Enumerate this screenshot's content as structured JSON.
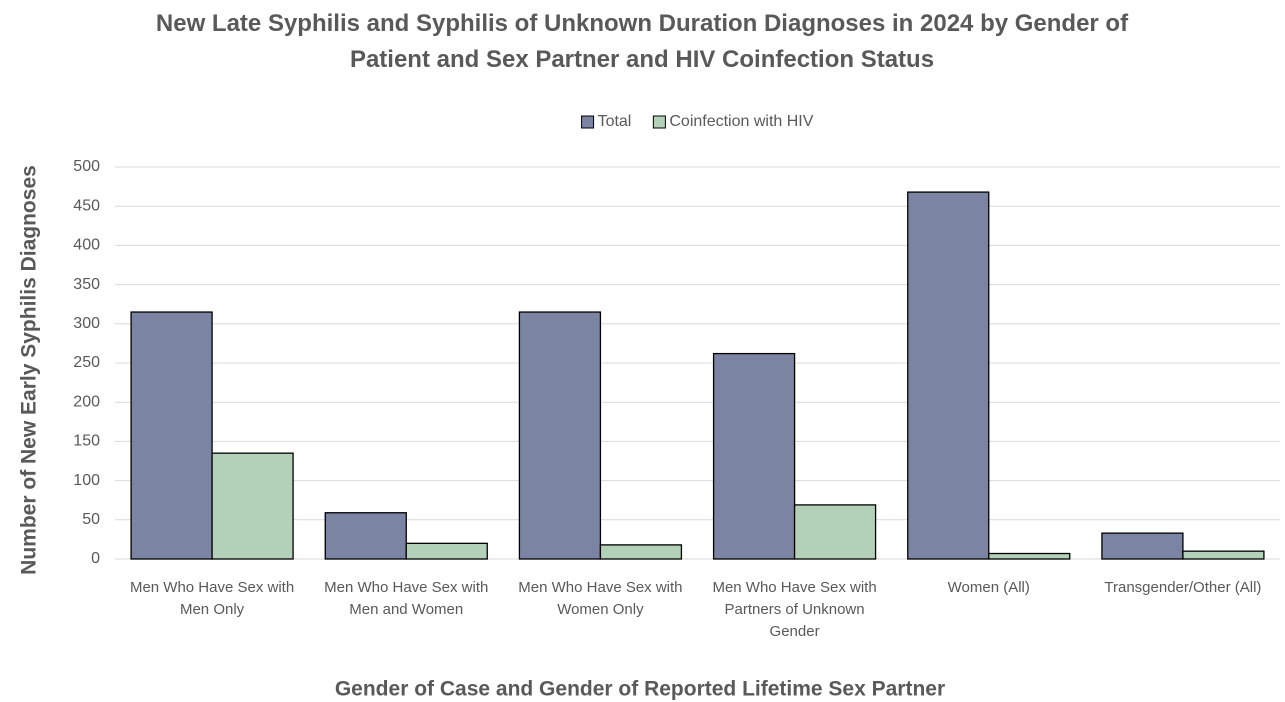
{
  "chart_data": {
    "type": "bar",
    "title": "New Late Syphilis and Syphilis of Unknown Duration Diagnoses in 2024 by Gender of Patient and Sex Partner and HIV Coinfection Status",
    "x_label": "Gender of Case and Gender of Reported Lifetime Sex Partner",
    "y_label": "Number of New Early Syphilis Diagnoses",
    "categories": [
      "Men Who Have Sex with Men Only",
      "Men Who Have Sex with Men and Women",
      "Men Who Have Sex with Women Only",
      "Men Who Have Sex with Partners of Unknown Gender",
      "Women (All)",
      "Transgender/Other (All)"
    ],
    "series": [
      {
        "name": "Total",
        "color": "#7b84a3",
        "values": [
          315,
          59,
          315,
          262,
          468,
          33
        ]
      },
      {
        "name": "Coinfection with HIV",
        "color": "#b3d1b9",
        "values": [
          135,
          20,
          18,
          69,
          7,
          10
        ]
      }
    ],
    "ylim": [
      0,
      500
    ],
    "yticks": [
      0,
      50,
      100,
      150,
      200,
      250,
      300,
      350,
      400,
      450,
      500
    ],
    "grid": true,
    "legend": "top"
  }
}
